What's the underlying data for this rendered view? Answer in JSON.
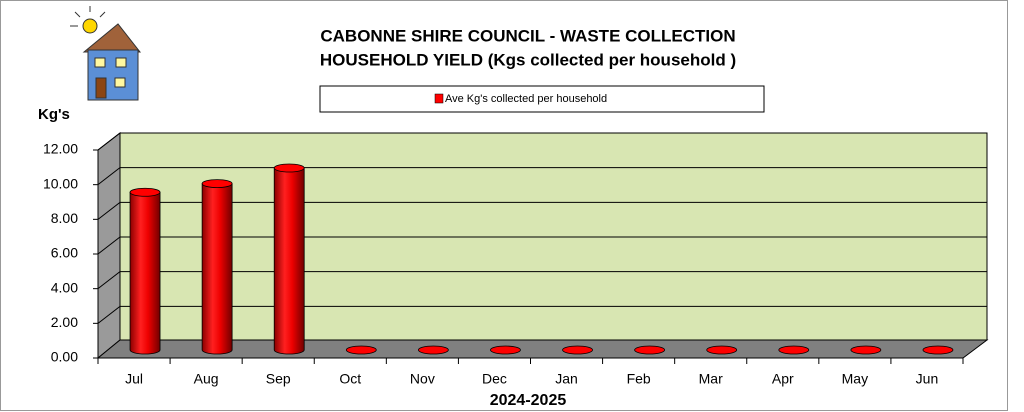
{
  "chart_data": {
    "type": "bar",
    "title": "CABONNE SHIRE COUNCIL - WASTE COLLECTION",
    "subtitle": "HOUSEHOLD YIELD (Kgs collected per household )",
    "ylabel": "Kg's",
    "xlabel": "2024-2025",
    "categories": [
      "Jul",
      "Aug",
      "Sep",
      "Oct",
      "Nov",
      "Dec",
      "Jan",
      "Feb",
      "Mar",
      "Apr",
      "May",
      "Jun"
    ],
    "series": [
      {
        "name": "Ave Kg's collected per household",
        "color": "#ff0000",
        "values": [
          9.1,
          9.6,
          10.5,
          0,
          0,
          0,
          0,
          0,
          0,
          0,
          0,
          0
        ]
      }
    ],
    "ylim": [
      0,
      12
    ],
    "yticks": [
      {
        "value": 0,
        "label": "0.00"
      },
      {
        "value": 2,
        "label": "2.00"
      },
      {
        "value": 4,
        "label": "4.00"
      },
      {
        "value": 6,
        "label": "6.00"
      },
      {
        "value": 8,
        "label": "8.00"
      },
      {
        "value": 10,
        "label": "10.00"
      },
      {
        "value": 12,
        "label": "12.00"
      }
    ],
    "grid": true
  }
}
